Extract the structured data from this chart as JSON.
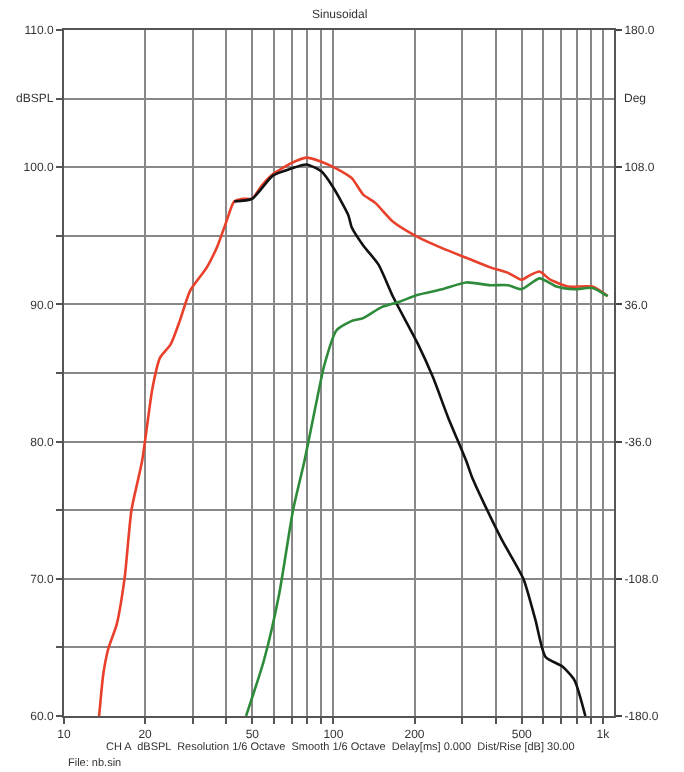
{
  "chart_data": {
    "type": "line",
    "title": "Sinusoidal",
    "ylabel": "dBSPL",
    "y2label": "Deg",
    "annotations": [
      "CH A  dBSPL  Resolution 1/6 Octave  Smooth 1/6 Octave  Delay[ms] 0.000  Dist/Rise [dB] 30.00",
      "File: nb.sin"
    ],
    "log": "x",
    "grid": true,
    "marker": "none",
    "line_style": "solid",
    "xlim": [
      10,
      1100
    ],
    "xticks": [
      10,
      20,
      {
        "value": 30,
        "label": null
      },
      {
        "value": 40,
        "label": null
      },
      50,
      {
        "value": 60,
        "label": null
      },
      {
        "value": 70,
        "label": null
      },
      {
        "value": 80,
        "label": null
      },
      {
        "value": 90,
        "label": null
      },
      100,
      200,
      {
        "value": 300,
        "label": null
      },
      {
        "value": 400,
        "label": null
      },
      500,
      {
        "value": 600,
        "label": null
      },
      {
        "value": 700,
        "label": null
      },
      {
        "value": 800,
        "label": null
      },
      {
        "value": 900,
        "label": null
      },
      {
        "value": 1000,
        "label": "1k"
      }
    ],
    "ylim": [
      60,
      110
    ],
    "yticks": [
      {
        "value": 60,
        "label": "60.0"
      },
      {
        "value": 65,
        "label": null
      },
      {
        "value": 70,
        "label": "70.0"
      },
      {
        "value": 75,
        "label": null
      },
      {
        "value": 80,
        "label": "80.0"
      },
      {
        "value": 85,
        "label": null
      },
      {
        "value": 90,
        "label": "90.0"
      },
      {
        "value": 95,
        "label": null
      },
      {
        "value": 100,
        "label": "100.0"
      },
      {
        "value": 105,
        "label": null
      },
      {
        "value": 110,
        "label": "110.0"
      }
    ],
    "y2lim": [
      -180,
      180
    ],
    "y2ticks": [
      {
        "value": -180,
        "label": "-180.0"
      },
      {
        "value": -108,
        "label": "-108.0"
      },
      {
        "value": -36,
        "label": "-36.0"
      },
      {
        "value": 36,
        "label": "36.0"
      },
      {
        "value": 108,
        "label": "108.0"
      },
      {
        "value": 180,
        "label": "180.0"
      }
    ],
    "series": [
      {
        "color": "#e8402a",
        "x": [
          13.5,
          14.0,
          14.6,
          15.7,
          16.8,
          17.8,
          19.5,
          21.3,
          22.7,
          24.9,
          26.9,
          29.4,
          33.9,
          37.2,
          40,
          42.8,
          46.2,
          49.9,
          54.4,
          59.7,
          69.8,
          79.3,
          90.2,
          102.6,
          117,
          129,
          143,
          167,
          206,
          253,
          311,
          382,
          445,
          499,
          533,
          582,
          638,
          745,
          915,
          1042
        ],
        "values": [
          60,
          63.1,
          64.9,
          66.7,
          70.1,
          75.0,
          78.6,
          83.9,
          86.1,
          87.1,
          88.8,
          91.0,
          92.7,
          94.3,
          96.0,
          97.5,
          97.7,
          97.7,
          98.7,
          99.5,
          100.3,
          100.7,
          100.4,
          99.9,
          99.2,
          98.0,
          97.4,
          96.0,
          94.9,
          94.1,
          93.4,
          92.7,
          92.3,
          91.8,
          92.1,
          92.4,
          91.8,
          91.3,
          91.3,
          90.6
        ]
      },
      {
        "color": "#111111",
        "x": [
          42.8,
          49.9,
          59.7,
          69.8,
          79.3,
          90.2,
          100,
          113.6,
          117,
          129,
          147,
          167,
          206,
          234,
          266,
          311,
          327,
          362,
          423,
          507,
          562,
          613,
          708,
          785,
          861
        ],
        "values": [
          97.5,
          97.7,
          99.4,
          99.9,
          100.2,
          99.7,
          98.5,
          96.5,
          95.6,
          94.3,
          92.9,
          90.5,
          87.1,
          84.7,
          81.8,
          78.6,
          77.4,
          75.5,
          72.8,
          70.0,
          67.0,
          64.3,
          63.6,
          62.6,
          60
        ]
      },
      {
        "color": "#2e8b3a",
        "x": [
          47.4,
          55.3,
          62.9,
          70.8,
          78.1,
          85.7,
          92.6,
          102.6,
          117,
          129,
          151,
          176,
          206,
          253,
          311,
          382,
          445,
          499,
          582,
          673,
          785,
          915,
          1042
        ],
        "values": [
          60,
          64.1,
          68.9,
          75.0,
          78.6,
          82.5,
          85.6,
          88.1,
          88.8,
          89.0,
          89.8,
          90.2,
          90.7,
          91.1,
          91.6,
          91.4,
          91.4,
          91.1,
          91.9,
          91.3,
          91.1,
          91.2,
          90.6
        ]
      }
    ]
  }
}
